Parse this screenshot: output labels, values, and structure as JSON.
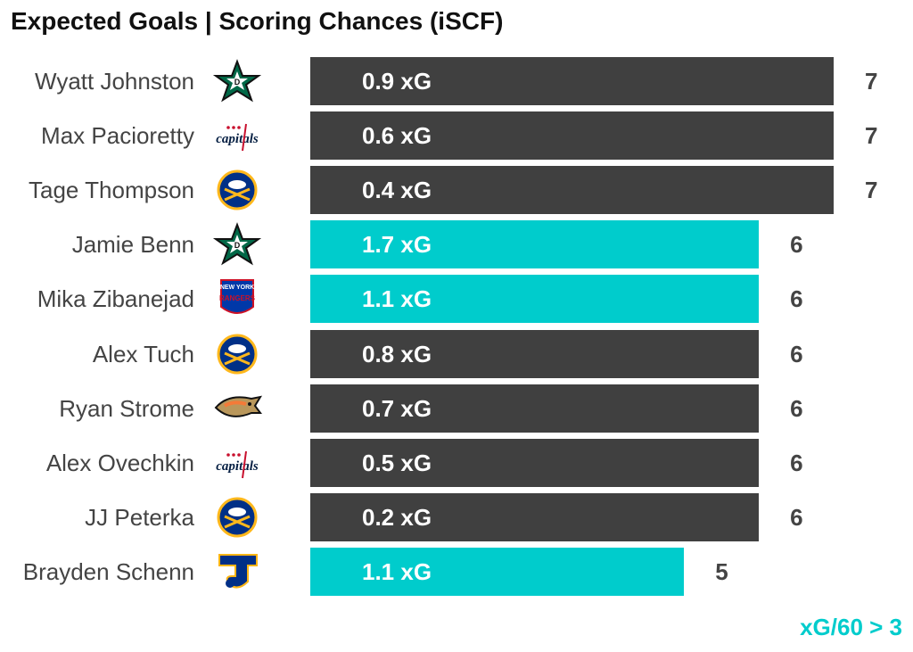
{
  "title": "Expected Goals | Scoring Chances (iSCF)",
  "legend_note": "xG/60 > 3",
  "colors": {
    "highlight": "#00CCCC",
    "default": "#404040",
    "text": "#444444"
  },
  "chart_data": {
    "type": "bar",
    "orientation": "horizontal",
    "title": "Expected Goals | Scoring Chances (iSCF)",
    "xlim": [
      0,
      7
    ],
    "value_label": "iSCF",
    "rows": [
      {
        "player": "Wyatt Johnston",
        "team_icon": "dallas-stars-logo-icon",
        "xg_label": "0.9 xG",
        "xg": 0.9,
        "iscf": 7,
        "highlight": false
      },
      {
        "player": "Max Pacioretty",
        "team_icon": "washington-capitals-logo-icon",
        "xg_label": "0.6 xG",
        "xg": 0.6,
        "iscf": 7,
        "highlight": false
      },
      {
        "player": "Tage Thompson",
        "team_icon": "buffalo-sabres-logo-icon",
        "xg_label": "0.4 xG",
        "xg": 0.4,
        "iscf": 7,
        "highlight": false
      },
      {
        "player": "Jamie Benn",
        "team_icon": "dallas-stars-logo-icon",
        "xg_label": "1.7 xG",
        "xg": 1.7,
        "iscf": 6,
        "highlight": true
      },
      {
        "player": "Mika Zibanejad",
        "team_icon": "new-york-rangers-logo-icon",
        "xg_label": "1.1 xG",
        "xg": 1.1,
        "iscf": 6,
        "highlight": true
      },
      {
        "player": "Alex Tuch",
        "team_icon": "buffalo-sabres-logo-icon",
        "xg_label": "0.8 xG",
        "xg": 0.8,
        "iscf": 6,
        "highlight": false
      },
      {
        "player": "Ryan Strome",
        "team_icon": "anaheim-ducks-logo-icon",
        "xg_label": "0.7 xG",
        "xg": 0.7,
        "iscf": 6,
        "highlight": false
      },
      {
        "player": "Alex Ovechkin",
        "team_icon": "washington-capitals-logo-icon",
        "xg_label": "0.5 xG",
        "xg": 0.5,
        "iscf": 6,
        "highlight": false
      },
      {
        "player": "JJ Peterka",
        "team_icon": "buffalo-sabres-logo-icon",
        "xg_label": "0.2 xG",
        "xg": 0.2,
        "iscf": 6,
        "highlight": false
      },
      {
        "player": "Brayden Schenn",
        "team_icon": "st-louis-blues-logo-icon",
        "xg_label": "1.1 xG",
        "xg": 1.1,
        "iscf": 5,
        "highlight": true
      }
    ]
  }
}
